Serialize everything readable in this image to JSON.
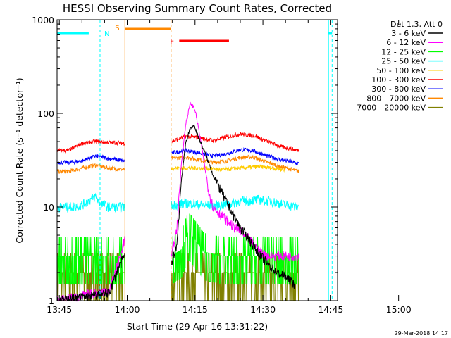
{
  "chart_data": {
    "type": "line",
    "title": "HESSI Observing Summary Count Rates, Corrected",
    "xlabel": "Start Time (29-Apr-16 13:31:22)",
    "ylabel": "Corrected Count Rate (s⁻¹ detector⁻¹)",
    "x_range_minutes": [
      13.5,
      75.5
    ],
    "x_tick_values_minutes": [
      14,
      29,
      44,
      59,
      74,
      89
    ],
    "x_tick_labels": [
      "13:45",
      "14:00",
      "14:15",
      "14:30",
      "14:45",
      "15:00"
    ],
    "yscale": "log",
    "ylim": [
      1,
      1000
    ],
    "y_tick_labels": [
      "1",
      "10",
      "100",
      "1000"
    ],
    "legend": {
      "title": "Det 1,3, Att 0",
      "placement": "outside-right"
    },
    "flags": [
      {
        "label": "N",
        "color": "#00ffff",
        "intervals": [
          [
            13.5,
            23.0
          ],
          [
            73.5,
            91.5
          ]
        ]
      },
      {
        "label": "S",
        "color": "#ff8800",
        "intervals": [
          [
            28.5,
            38.7
          ]
        ]
      },
      {
        "label": "F",
        "color": "#ff0000",
        "intervals": [
          [
            40.5,
            51.5
          ]
        ]
      }
    ],
    "gaps": [
      [
        28.5,
        38.7
      ]
    ],
    "series": [
      {
        "name": "3 - 6 keV",
        "color": "#000000",
        "points": [
          [
            13.5,
            1.0
          ],
          [
            25.0,
            1.2
          ],
          [
            27.0,
            2.2
          ],
          [
            28.4,
            3.0
          ],
          [
            38.8,
            2.5
          ],
          [
            40.0,
            4.0
          ],
          [
            41.0,
            20
          ],
          [
            42.0,
            50
          ],
          [
            43.0,
            70
          ],
          [
            43.8,
            74
          ],
          [
            44.5,
            60
          ],
          [
            46.0,
            40
          ],
          [
            48.0,
            22
          ],
          [
            50.0,
            14
          ],
          [
            52.0,
            9
          ],
          [
            54.0,
            6
          ],
          [
            56.0,
            4.5
          ],
          [
            58.0,
            3.2
          ],
          [
            60.0,
            2.5
          ],
          [
            62.0,
            2.0
          ],
          [
            64.0,
            1.8
          ],
          [
            66.0,
            1.5
          ]
        ]
      },
      {
        "name": "6 - 12 keV",
        "color": "#ff00ff",
        "points": [
          [
            13.5,
            1.0
          ],
          [
            25.0,
            1.3
          ],
          [
            27.0,
            2.5
          ],
          [
            28.4,
            4.5
          ],
          [
            38.8,
            3.0
          ],
          [
            40.0,
            6
          ],
          [
            41.0,
            30
          ],
          [
            42.0,
            80
          ],
          [
            43.0,
            130
          ],
          [
            44.0,
            110
          ],
          [
            45.0,
            60
          ],
          [
            46.0,
            30
          ],
          [
            47.0,
            15
          ],
          [
            48.0,
            10
          ],
          [
            50.0,
            8
          ],
          [
            52.0,
            6.5
          ],
          [
            54.0,
            5.5
          ],
          [
            56.0,
            4.5
          ],
          [
            58.0,
            3.5
          ],
          [
            60.0,
            3.0
          ],
          [
            64.0,
            3.0
          ],
          [
            67.0,
            3.0
          ]
        ]
      },
      {
        "name": "12 - 25 keV",
        "color": "#00ff00",
        "points": [
          [
            13.5,
            3.0
          ],
          [
            16.0,
            3.0
          ],
          [
            20.0,
            3.0
          ],
          [
            24.0,
            3.0
          ],
          [
            28.4,
            3.0
          ],
          [
            38.8,
            3.0
          ],
          [
            41.0,
            3.5
          ],
          [
            42.5,
            5.5
          ],
          [
            44.0,
            4.5
          ],
          [
            46.0,
            3.3
          ],
          [
            50.0,
            3.0
          ],
          [
            56.0,
            3.0
          ],
          [
            62.0,
            3.0
          ],
          [
            67.0,
            3.0
          ]
        ]
      },
      {
        "name": "25 - 50 keV",
        "color": "#00ffff",
        "points": [
          [
            13.5,
            10.0
          ],
          [
            16.0,
            10.0
          ],
          [
            19.0,
            10.5
          ],
          [
            22.0,
            13
          ],
          [
            23.0,
            11
          ],
          [
            25.0,
            10
          ],
          [
            28.4,
            10
          ],
          [
            38.8,
            10.5
          ],
          [
            42.0,
            11
          ],
          [
            46.0,
            10.5
          ],
          [
            50.0,
            10.5
          ],
          [
            54.0,
            11.5
          ],
          [
            58.0,
            12
          ],
          [
            61.0,
            11.5
          ],
          [
            64.0,
            10.5
          ],
          [
            67.0,
            10
          ]
        ]
      },
      {
        "name": "50 - 100 keV",
        "color": "#ffcc00",
        "points": [
          [
            38.8,
            26
          ],
          [
            42.0,
            26
          ],
          [
            46.0,
            26
          ],
          [
            50.0,
            25
          ],
          [
            54.0,
            26
          ],
          [
            58.0,
            27
          ],
          [
            61.0,
            26
          ],
          [
            64.0,
            25
          ]
        ]
      },
      {
        "name": "100 - 300 keV",
        "color": "#ff0000",
        "points": [
          [
            13.5,
            40
          ],
          [
            16.0,
            40
          ],
          [
            19.0,
            48
          ],
          [
            22.0,
            50
          ],
          [
            25.0,
            49
          ],
          [
            28.4,
            48
          ],
          [
            38.8,
            50
          ],
          [
            42.0,
            57
          ],
          [
            45.0,
            55
          ],
          [
            48.0,
            51
          ],
          [
            51.0,
            56
          ],
          [
            54.0,
            60
          ],
          [
            57.0,
            58
          ],
          [
            60.0,
            50
          ],
          [
            63.0,
            44
          ],
          [
            67.0,
            40
          ]
        ]
      },
      {
        "name": "300 - 800 keV",
        "color": "#0000ff",
        "points": [
          [
            13.5,
            30
          ],
          [
            16.0,
            30
          ],
          [
            19.0,
            31
          ],
          [
            22.0,
            35
          ],
          [
            25.0,
            33
          ],
          [
            28.4,
            31
          ],
          [
            38.8,
            38
          ],
          [
            42.0,
            40
          ],
          [
            45.0,
            38
          ],
          [
            48.0,
            35
          ],
          [
            51.0,
            37
          ],
          [
            54.0,
            41
          ],
          [
            57.0,
            40
          ],
          [
            60.0,
            35
          ],
          [
            63.0,
            32
          ],
          [
            67.0,
            29
          ]
        ]
      },
      {
        "name": "800 - 7000 keV",
        "color": "#ff8800",
        "points": [
          [
            13.5,
            24
          ],
          [
            16.0,
            24
          ],
          [
            19.0,
            26
          ],
          [
            22.0,
            28
          ],
          [
            25.0,
            26
          ],
          [
            28.4,
            25
          ],
          [
            38.8,
            33
          ],
          [
            42.0,
            34
          ],
          [
            45.0,
            32
          ],
          [
            48.0,
            30
          ],
          [
            51.0,
            31
          ],
          [
            54.0,
            34
          ],
          [
            57.0,
            34
          ],
          [
            60.0,
            30
          ],
          [
            63.0,
            27
          ],
          [
            67.0,
            24
          ]
        ]
      },
      {
        "name": "7000 - 20000 keV",
        "color": "#808000",
        "points": [
          [
            13.5,
            2.0
          ],
          [
            20.0,
            2.0
          ],
          [
            28.4,
            2.0
          ],
          [
            38.8,
            2.0
          ],
          [
            50.0,
            2.0
          ],
          [
            60.0,
            2.0
          ],
          [
            67.0,
            2.0
          ]
        ]
      }
    ],
    "grid": false
  },
  "stamp": "29-Mar-2018 14:17"
}
